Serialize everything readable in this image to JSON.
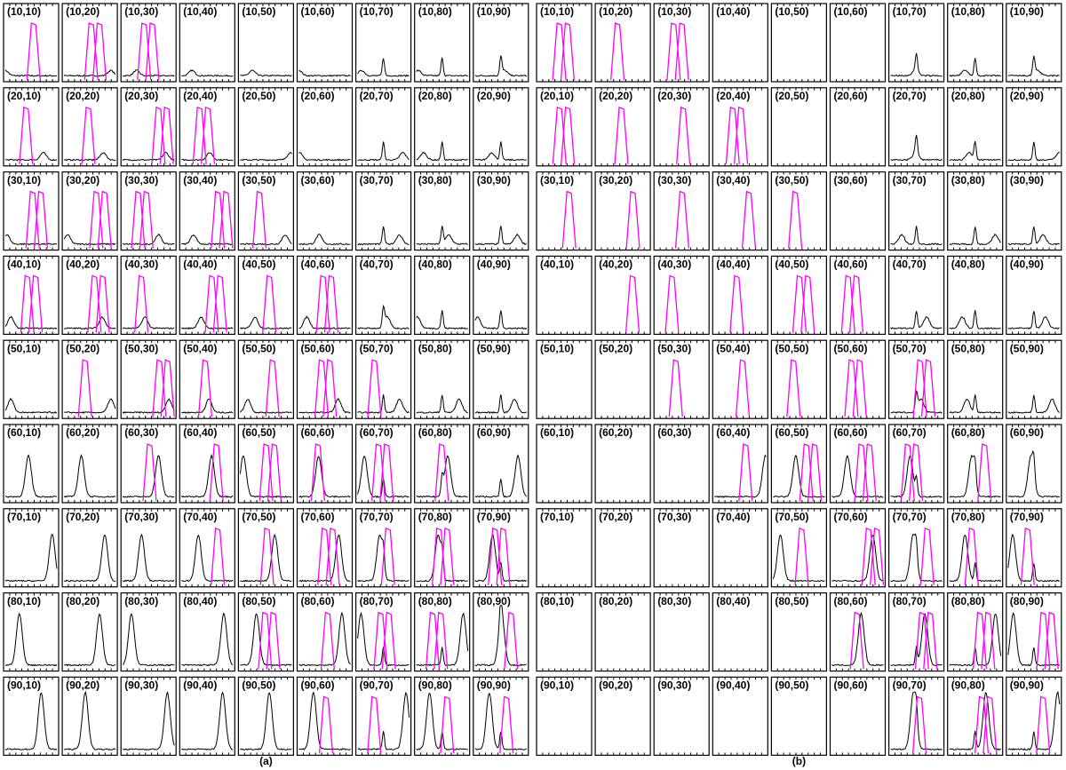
{
  "panels": [
    {
      "caption": "(a)",
      "cells": [
        [
          "(10,10)",
          "(10,20)",
          "(10,30)",
          "(10,40)",
          "(10,50)",
          "(10,60)",
          "(10,70)",
          "(10,80)",
          "(10,90)"
        ],
        [
          "(20,10)",
          "(20,20)",
          "(20,30)",
          "(20,40)",
          "(20,50)",
          "(20,60)",
          "(20,70)",
          "(20,80)",
          "(20,90)"
        ],
        [
          "(30,10)",
          "(30,20)",
          "(30,30)",
          "(30,40)",
          "(30,50)",
          "(30,60)",
          "(30,70)",
          "(30,80)",
          "(30,90)"
        ],
        [
          "(40,10)",
          "(40,20)",
          "(40,30)",
          "(40,40)",
          "(40,50)",
          "(40,60)",
          "(40,70)",
          "(40,80)",
          "(40,90)"
        ],
        [
          "(50,10)",
          "(50,20)",
          "(50,30)",
          "(50,40)",
          "(50,50)",
          "(50,60)",
          "(50,70)",
          "(50,80)",
          "(50,90)"
        ],
        [
          "(60,10)",
          "(60,20)",
          "(60,30)",
          "(60,40)",
          "(60,50)",
          "(60,60)",
          "(60,70)",
          "(60,80)",
          "(60,90)"
        ],
        [
          "(70,10)",
          "(70,20)",
          "(70,30)",
          "(70,40)",
          "(70,50)",
          "(70,60)",
          "(70,70)",
          "(70,80)",
          "(70,90)"
        ],
        [
          "(80,10)",
          "(80,20)",
          "(80,30)",
          "(80,40)",
          "(80,50)",
          "(80,60)",
          "(80,70)",
          "(80,80)",
          "(80,90)"
        ],
        [
          "(90,10)",
          "(90,20)",
          "(90,30)",
          "(90,40)",
          "(90,50)",
          "(90,60)",
          "(90,70)",
          "(90,80)",
          "(90,90)"
        ]
      ]
    },
    {
      "caption": "(b)",
      "cells": [
        [
          "(10,10)",
          "(10,20)",
          "(10,30)",
          "(10,40)",
          "(10,50)",
          "(10,60)",
          "(10,70)",
          "(10,80)",
          "(10,90)"
        ],
        [
          "(20,10)",
          "(20,20)",
          "(20,30)",
          "(20,40)",
          "(20,50)",
          "(20,60)",
          "(20,70)",
          "(20,80)",
          "(20,90)"
        ],
        [
          "(30,10)",
          "(30,20)",
          "(30,30)",
          "(30,40)",
          "(30,50)",
          "(30,60)",
          "(30,70)",
          "(30,80)",
          "(30,90)"
        ],
        [
          "(40,10)",
          "(40,20)",
          "(40,30)",
          "(40,40)",
          "(40,50)",
          "(40,60)",
          "(40,70)",
          "(40,80)",
          "(40,90)"
        ],
        [
          "(50,10)",
          "(50,20)",
          "(50,30)",
          "(50,40)",
          "(50,50)",
          "(50,60)",
          "(50,70)",
          "(50,80)",
          "(50,90)"
        ],
        [
          "(60,10)",
          "(60,20)",
          "(60,30)",
          "(60,40)",
          "(60,50)",
          "(60,60)",
          "(60,70)",
          "(60,80)",
          "(60,90)"
        ],
        [
          "(70,10)",
          "(70,20)",
          "(70,30)",
          "(70,40)",
          "(70,50)",
          "(70,60)",
          "(70,70)",
          "(70,80)",
          "(70,90)"
        ],
        [
          "(80,10)",
          "(80,20)",
          "(80,30)",
          "(80,40)",
          "(80,50)",
          "(80,60)",
          "(80,70)",
          "(80,80)",
          "(80,90)"
        ],
        [
          "(90,10)",
          "(90,20)",
          "(90,30)",
          "(90,40)",
          "(90,50)",
          "(90,60)",
          "(90,70)",
          "(90,80)",
          "(90,90)"
        ]
      ]
    }
  ]
}
